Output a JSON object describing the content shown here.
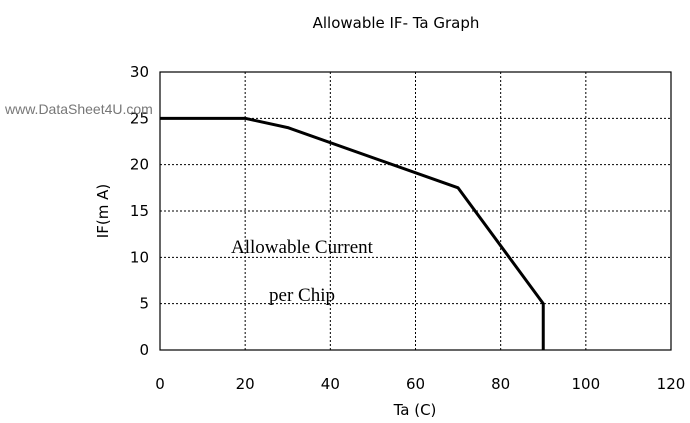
{
  "watermark": "www.DataSheet4U.com",
  "chart_data": {
    "type": "line",
    "title": "Allowable IF- Ta Graph",
    "xlabel": "Ta (C)",
    "ylabel": "IF(m A)",
    "xlim": [
      0,
      120
    ],
    "ylim": [
      0,
      30
    ],
    "xticks": [
      0,
      20,
      40,
      60,
      80,
      100,
      120
    ],
    "yticks": [
      0,
      5,
      10,
      15,
      20,
      25,
      30
    ],
    "grid": true,
    "series": [
      {
        "x": [
          0,
          20,
          30,
          70,
          90,
          90
        ],
        "y": [
          25,
          25,
          24,
          17.5,
          5,
          0
        ]
      }
    ],
    "annotations": [
      "Allowable Current",
      "per Chip"
    ],
    "colors": {
      "line": "#000000",
      "grid": "#000000"
    }
  }
}
